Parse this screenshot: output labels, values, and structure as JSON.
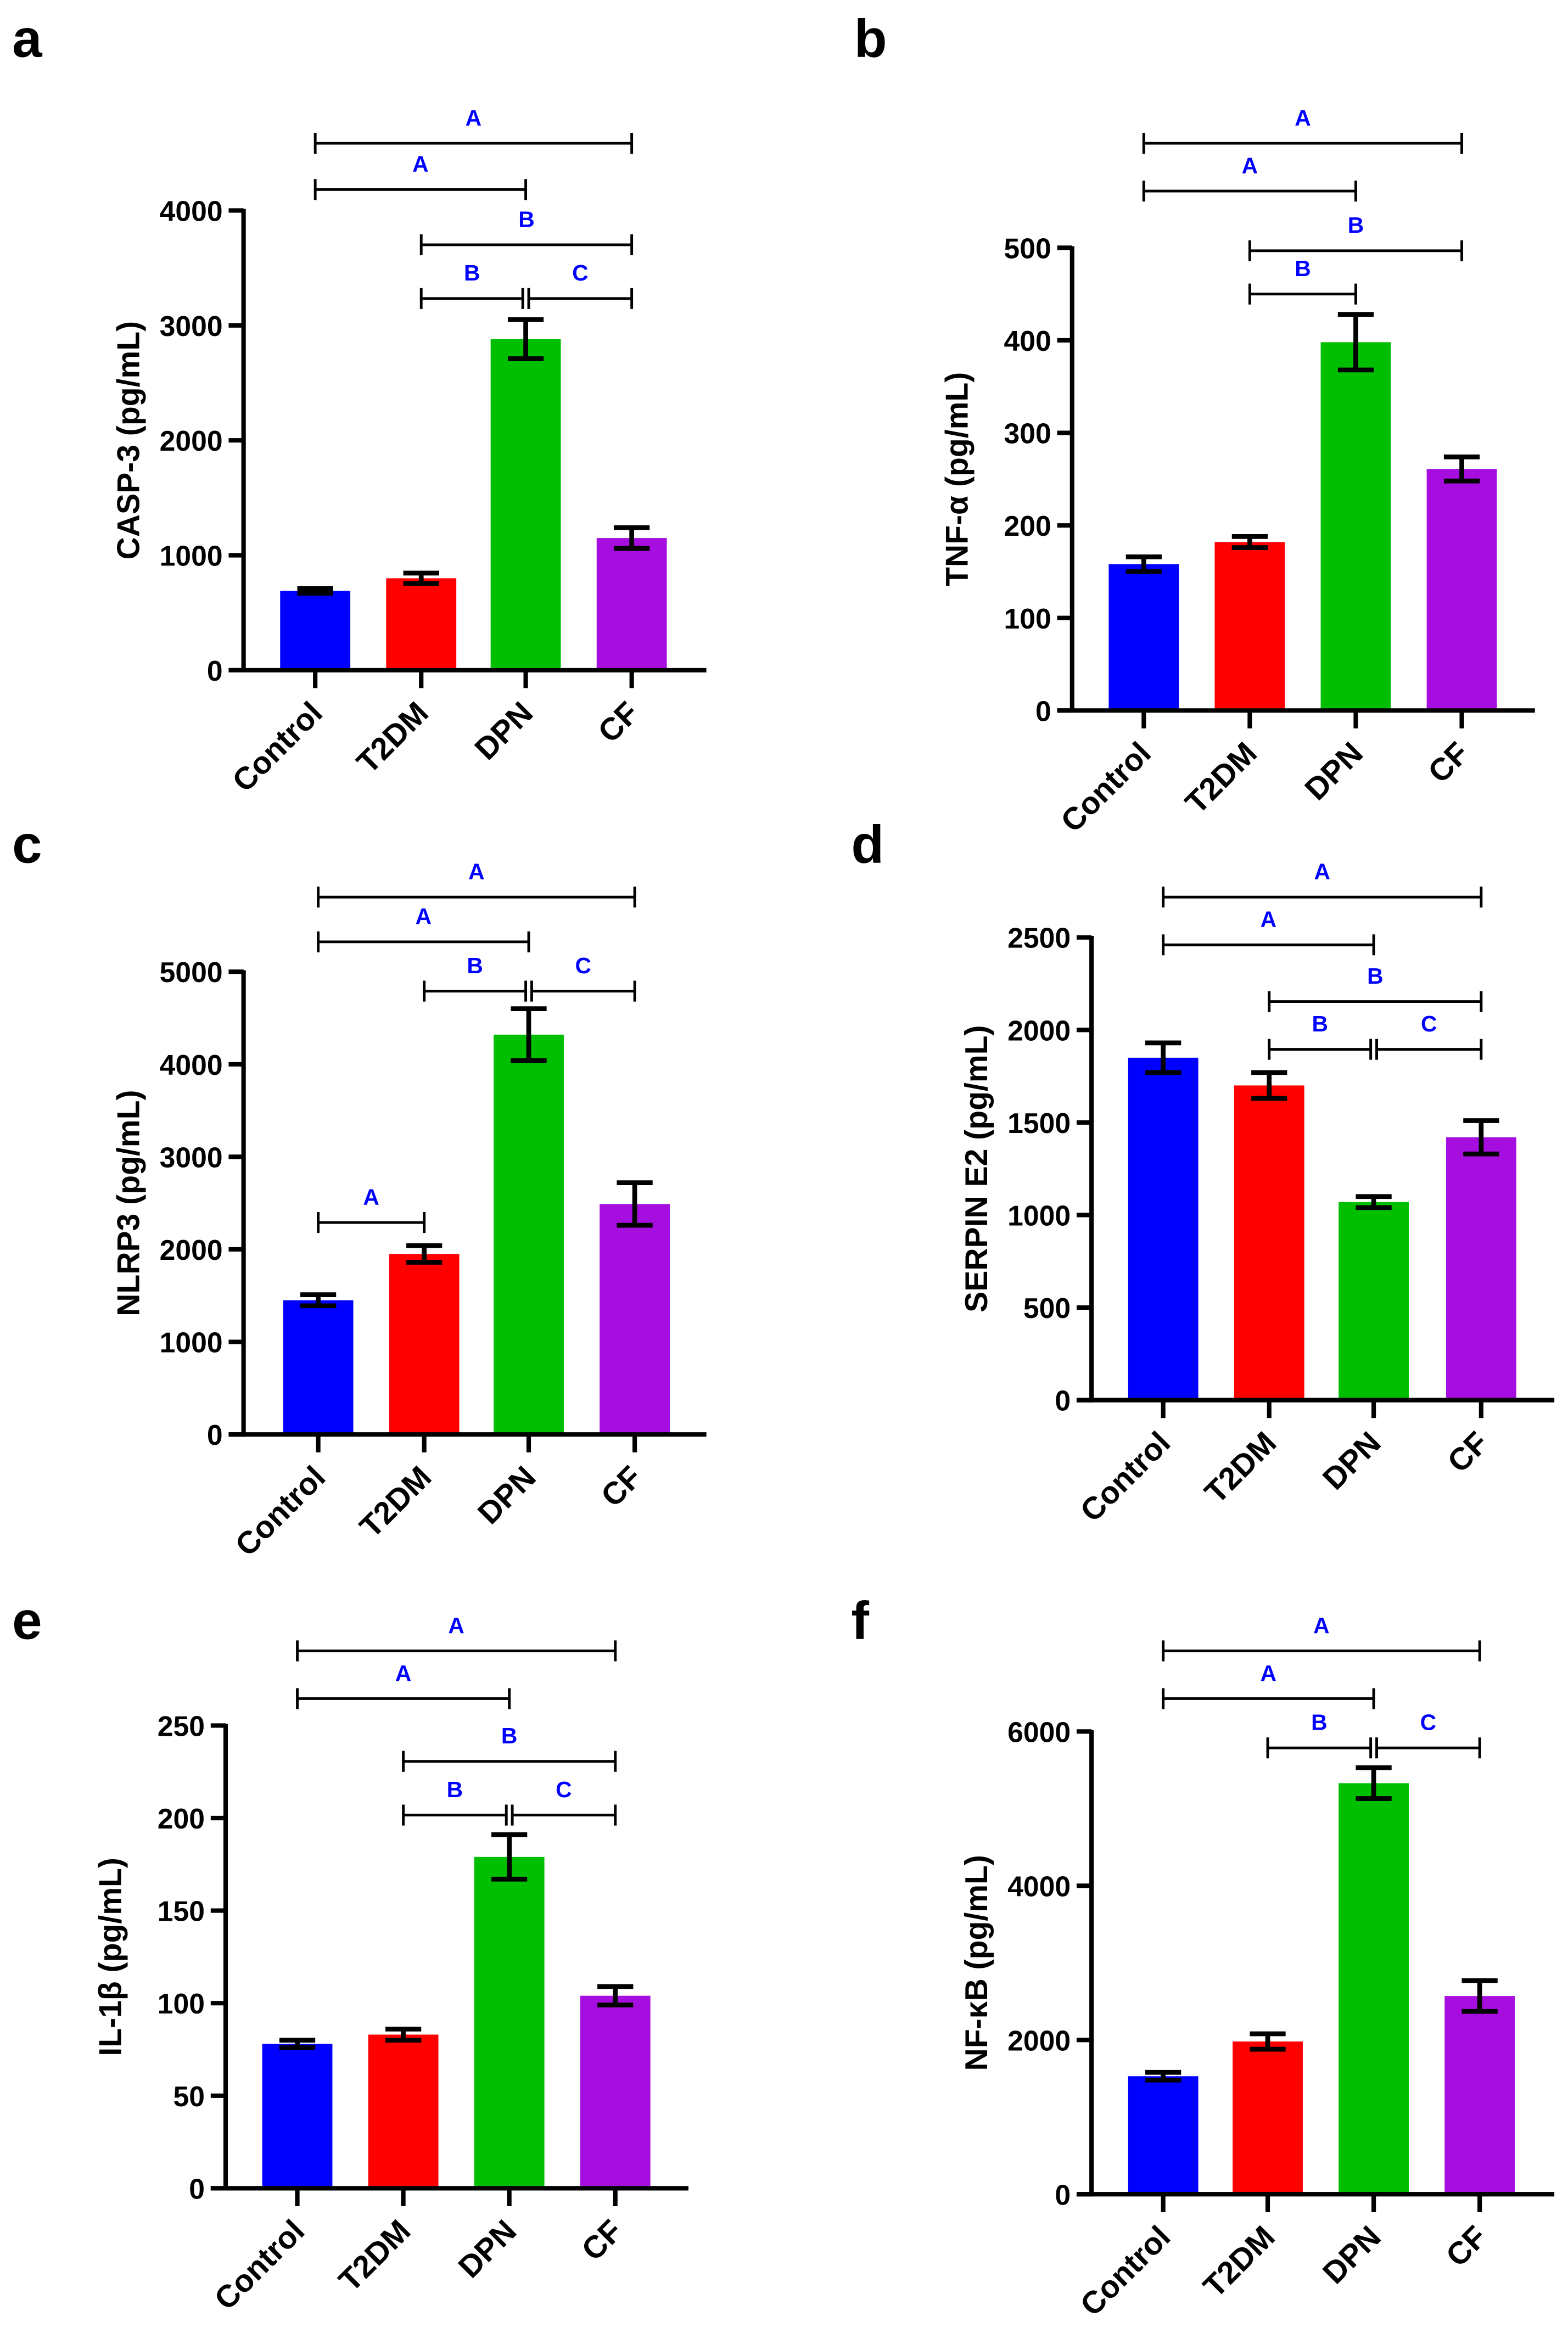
{
  "colors": {
    "Control": "#0000ff",
    "T2DM": "#ff0000",
    "DPN": "#00bf00",
    "CF": "#a60ddf",
    "significance": "#0000ff"
  },
  "chart_data": [
    {
      "panel": "a",
      "type": "bar",
      "ylabel": "CASP-3 (pg/mL)",
      "categories": [
        "Control",
        "T2DM",
        "DPN",
        "CF"
      ],
      "values": [
        690,
        800,
        2880,
        1150
      ],
      "errors": [
        20,
        45,
        170,
        90
      ],
      "ylim": [
        0,
        4000
      ],
      "yticks": [
        0,
        1000,
        2000,
        3000,
        4000
      ],
      "brackets": [
        {
          "from": 0,
          "to": 3,
          "label": "A"
        },
        {
          "from": 0,
          "to": 2,
          "label": "A"
        },
        {
          "from": 1,
          "to": 3,
          "label": "B"
        },
        {
          "from": 1,
          "to": 2,
          "label": "B"
        },
        {
          "from": 2,
          "to": 3,
          "label": "C"
        }
      ]
    },
    {
      "panel": "b",
      "type": "bar",
      "ylabel": "TNF-α (pg/mL)",
      "categories": [
        "Control",
        "T2DM",
        "DPN",
        "CF"
      ],
      "values": [
        158,
        182,
        398,
        261
      ],
      "errors": [
        8,
        6,
        30,
        13
      ],
      "ylim": [
        0,
        500
      ],
      "yticks": [
        0,
        100,
        200,
        300,
        400,
        500
      ],
      "brackets": [
        {
          "from": 0,
          "to": 3,
          "label": "A"
        },
        {
          "from": 0,
          "to": 2,
          "label": "A"
        },
        {
          "from": 1,
          "to": 3,
          "label": "B"
        },
        {
          "from": 1,
          "to": 2,
          "label": "B"
        }
      ]
    },
    {
      "panel": "c",
      "type": "bar",
      "ylabel": "NLRP3 (pg/mL)",
      "categories": [
        "Control",
        "T2DM",
        "DPN",
        "CF"
      ],
      "values": [
        1450,
        1950,
        4320,
        2490
      ],
      "errors": [
        60,
        90,
        280,
        230
      ],
      "ylim": [
        0,
        5000
      ],
      "yticks": [
        0,
        1000,
        2000,
        3000,
        4000,
        5000
      ],
      "brackets": [
        {
          "from": 0,
          "to": 3,
          "label": "A"
        },
        {
          "from": 0,
          "to": 2,
          "label": "A"
        },
        {
          "from": 1,
          "to": 2,
          "label": "B"
        },
        {
          "from": 2,
          "to": 3,
          "label": "C"
        },
        {
          "from": 0,
          "to": 1,
          "label": "A"
        }
      ]
    },
    {
      "panel": "d",
      "type": "bar",
      "ylabel": "SERPIN E2 (pg/mL)",
      "categories": [
        "Control",
        "T2DM",
        "DPN",
        "CF"
      ],
      "values": [
        1850,
        1700,
        1070,
        1420
      ],
      "errors": [
        80,
        70,
        30,
        90
      ],
      "ylim": [
        0,
        2500
      ],
      "yticks": [
        0,
        500,
        1000,
        1500,
        2000,
        2500
      ],
      "brackets": [
        {
          "from": 0,
          "to": 3,
          "label": "A"
        },
        {
          "from": 0,
          "to": 2,
          "label": "A"
        },
        {
          "from": 1,
          "to": 3,
          "label": "B"
        },
        {
          "from": 1,
          "to": 2,
          "label": "B"
        },
        {
          "from": 2,
          "to": 3,
          "label": "C"
        }
      ]
    },
    {
      "panel": "e",
      "type": "bar",
      "ylabel": "IL-1β (pg/mL)",
      "categories": [
        "Control",
        "T2DM",
        "DPN",
        "CF"
      ],
      "values": [
        78,
        83,
        179,
        104
      ],
      "errors": [
        2,
        3,
        12,
        5
      ],
      "ylim": [
        0,
        250
      ],
      "yticks": [
        0,
        50,
        100,
        150,
        200,
        250
      ],
      "brackets": [
        {
          "from": 0,
          "to": 3,
          "label": "A"
        },
        {
          "from": 0,
          "to": 2,
          "label": "A"
        },
        {
          "from": 1,
          "to": 3,
          "label": "B"
        },
        {
          "from": 1,
          "to": 2,
          "label": "B"
        },
        {
          "from": 2,
          "to": 3,
          "label": "C"
        }
      ]
    },
    {
      "panel": "f",
      "type": "bar",
      "ylabel": "NF-κB (pg/mL)",
      "categories": [
        "Control",
        "T2DM",
        "DPN",
        "CF"
      ],
      "values": [
        1530,
        1980,
        5330,
        2570
      ],
      "errors": [
        50,
        100,
        200,
        200
      ],
      "ylim": [
        0,
        6000
      ],
      "yticks": [
        0,
        2000,
        4000,
        6000
      ],
      "brackets": [
        {
          "from": 0,
          "to": 3,
          "label": "A"
        },
        {
          "from": 0,
          "to": 2,
          "label": "A"
        },
        {
          "from": 1,
          "to": 2,
          "label": "B"
        },
        {
          "from": 2,
          "to": 3,
          "label": "C"
        }
      ]
    }
  ]
}
